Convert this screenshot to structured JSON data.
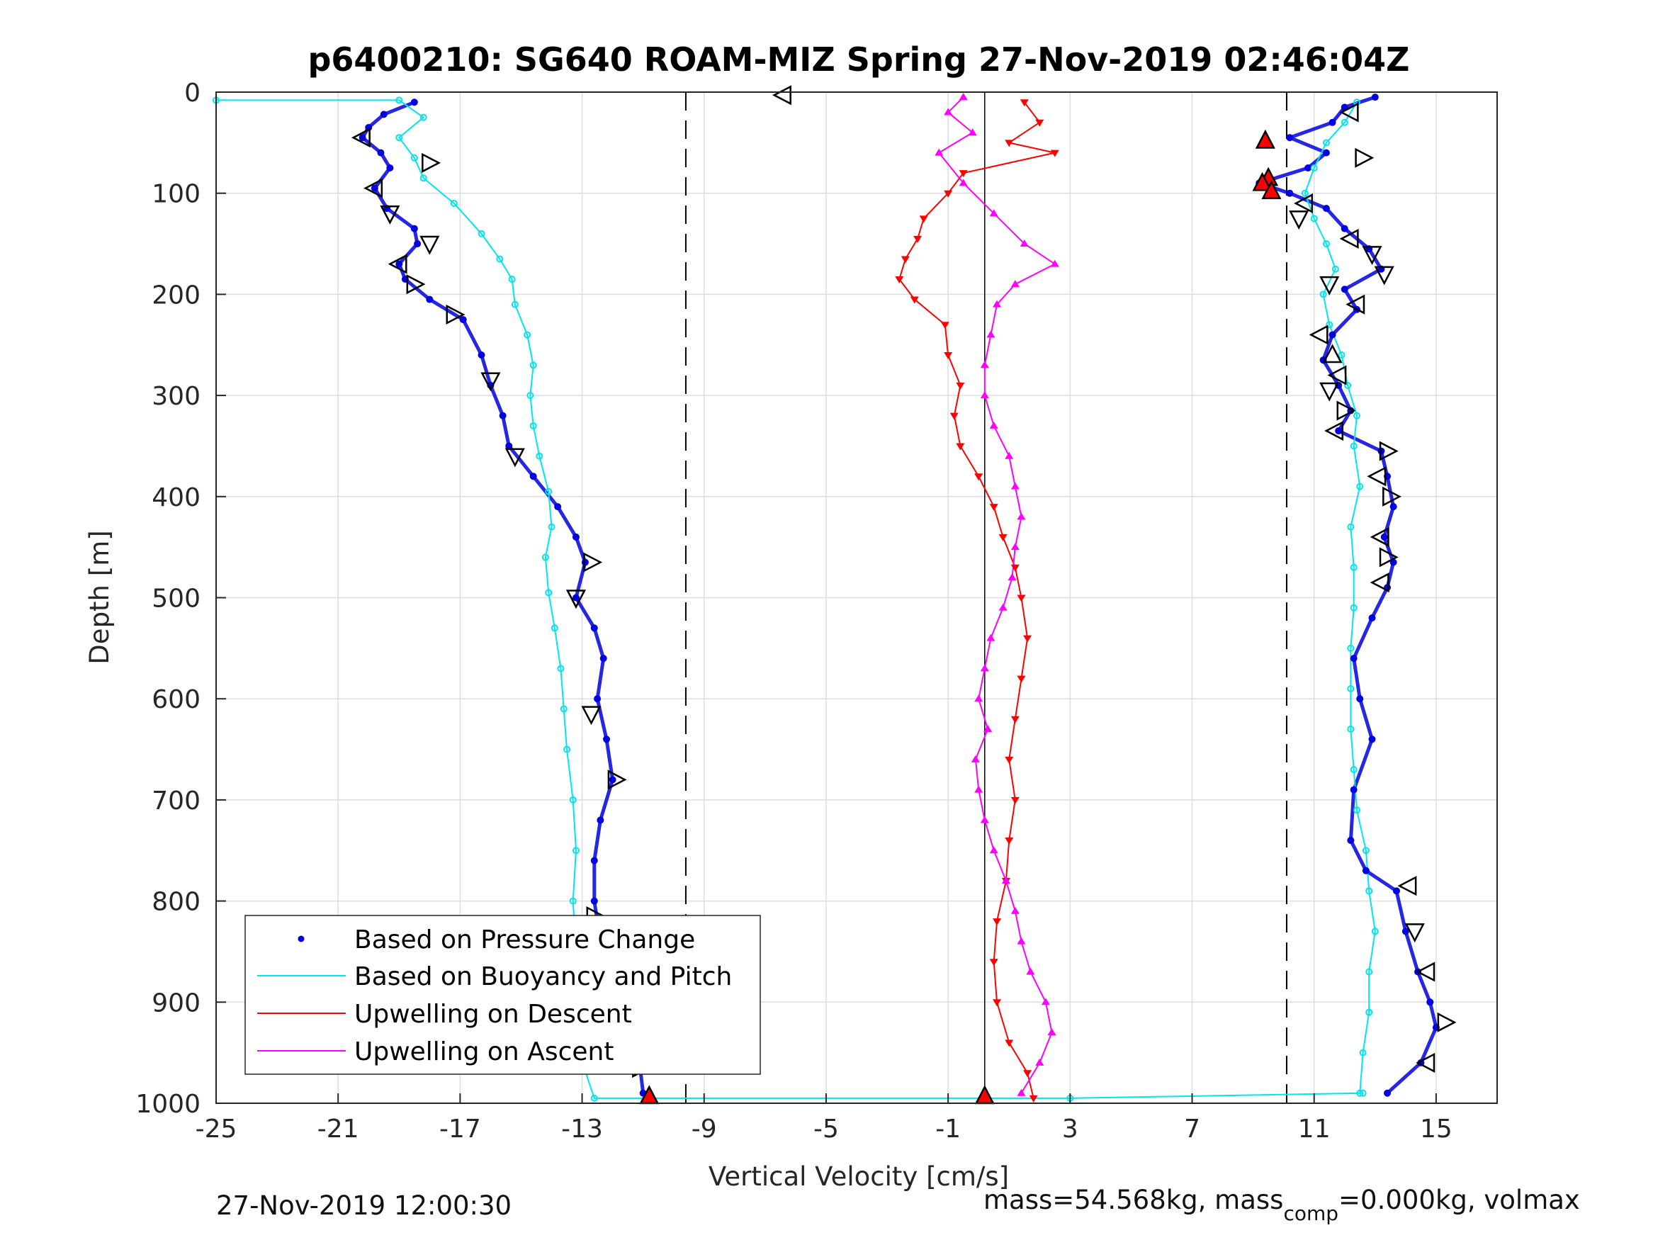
{
  "chart_data": {
    "type": "scatter",
    "title": "p6400210: SG640 ROAM-MIZ Spring 27-Nov-2019 02:46:04Z",
    "xlabel": "Vertical Velocity [cm/s]",
    "ylabel": "Depth [m]",
    "xlim": [
      -25,
      17
    ],
    "ylim": [
      1000,
      0
    ],
    "y_reversed": true,
    "grid": true,
    "xticks": [
      -25,
      -21,
      -17,
      -13,
      -9,
      -5,
      -1,
      3,
      7,
      11,
      15
    ],
    "yticks": [
      0,
      100,
      200,
      300,
      400,
      500,
      600,
      700,
      800,
      900,
      1000
    ],
    "legend": {
      "placement": "lower-left",
      "entries": [
        {
          "label": "Based on Pressure Change",
          "color": "#0000e0",
          "marker": "dot"
        },
        {
          "label": "Based on Buoyancy and Pitch",
          "color": "#00e5ee",
          "marker": "line"
        },
        {
          "label": "Upwelling on Descent",
          "color": "#ff0000",
          "marker": "line"
        },
        {
          "label": "Upwelling on Ascent",
          "color": "#ff00ff",
          "marker": "line"
        }
      ]
    },
    "reference_lines": {
      "dashed_x": [
        -9.6,
        10.1
      ],
      "solid_x": [
        0.2
      ]
    },
    "series": [
      {
        "name": "Based on Pressure Change",
        "phase": "descent",
        "color": "#0000e0",
        "points": [
          [
            -18.5,
            10
          ],
          [
            -19.5,
            22
          ],
          [
            -20.0,
            35
          ],
          [
            -20.2,
            45
          ],
          [
            -19.6,
            60
          ],
          [
            -19.3,
            75
          ],
          [
            -19.8,
            95
          ],
          [
            -19.4,
            115
          ],
          [
            -18.5,
            135
          ],
          [
            -18.4,
            150
          ],
          [
            -19.0,
            170
          ],
          [
            -18.8,
            185
          ],
          [
            -18.0,
            205
          ],
          [
            -16.9,
            225
          ],
          [
            -16.3,
            260
          ],
          [
            -16.0,
            290
          ],
          [
            -15.6,
            320
          ],
          [
            -15.4,
            350
          ],
          [
            -14.6,
            380
          ],
          [
            -13.8,
            410
          ],
          [
            -13.2,
            440
          ],
          [
            -12.9,
            465
          ],
          [
            -13.2,
            500
          ],
          [
            -12.6,
            530
          ],
          [
            -12.3,
            560
          ],
          [
            -12.5,
            600
          ],
          [
            -12.2,
            640
          ],
          [
            -12.0,
            680
          ],
          [
            -12.4,
            720
          ],
          [
            -12.6,
            760
          ],
          [
            -12.6,
            800
          ],
          [
            -12.4,
            840
          ],
          [
            -12.4,
            870
          ],
          [
            -12.0,
            900
          ],
          [
            -11.5,
            940
          ],
          [
            -11.1,
            965
          ],
          [
            -11.0,
            990
          ]
        ]
      },
      {
        "name": "Based on Pressure Change",
        "phase": "ascent",
        "color": "#0000e0",
        "points": [
          [
            13.0,
            5
          ],
          [
            12.0,
            15
          ],
          [
            11.6,
            30
          ],
          [
            10.2,
            45
          ],
          [
            11.4,
            60
          ],
          [
            10.8,
            75
          ],
          [
            9.2,
            90
          ],
          [
            10.2,
            100
          ],
          [
            11.4,
            115
          ],
          [
            12.0,
            135
          ],
          [
            12.8,
            155
          ],
          [
            13.2,
            175
          ],
          [
            12.0,
            195
          ],
          [
            12.4,
            215
          ],
          [
            11.6,
            240
          ],
          [
            11.3,
            265
          ],
          [
            11.8,
            290
          ],
          [
            12.2,
            315
          ],
          [
            11.8,
            335
          ],
          [
            13.2,
            355
          ],
          [
            13.4,
            380
          ],
          [
            13.6,
            410
          ],
          [
            13.3,
            440
          ],
          [
            13.6,
            465
          ],
          [
            13.4,
            490
          ],
          [
            12.9,
            520
          ],
          [
            12.3,
            560
          ],
          [
            12.5,
            600
          ],
          [
            12.9,
            640
          ],
          [
            12.3,
            690
          ],
          [
            12.2,
            740
          ],
          [
            12.7,
            770
          ],
          [
            13.7,
            790
          ],
          [
            14.0,
            830
          ],
          [
            14.4,
            870
          ],
          [
            14.8,
            900
          ],
          [
            15.0,
            925
          ],
          [
            14.5,
            960
          ],
          [
            13.4,
            990
          ]
        ]
      },
      {
        "name": "Based on Buoyancy and Pitch",
        "phase": "descent",
        "color": "#00e5ee",
        "points": [
          [
            -25.0,
            8
          ],
          [
            -19.0,
            8
          ],
          [
            -18.2,
            25
          ],
          [
            -19.0,
            45
          ],
          [
            -18.5,
            65
          ],
          [
            -18.2,
            85
          ],
          [
            -17.2,
            110
          ],
          [
            -16.3,
            140
          ],
          [
            -15.7,
            165
          ],
          [
            -15.3,
            185
          ],
          [
            -15.2,
            210
          ],
          [
            -14.8,
            240
          ],
          [
            -14.6,
            270
          ],
          [
            -14.7,
            300
          ],
          [
            -14.6,
            330
          ],
          [
            -14.4,
            360
          ],
          [
            -14.1,
            395
          ],
          [
            -14.0,
            430
          ],
          [
            -14.2,
            460
          ],
          [
            -14.1,
            495
          ],
          [
            -13.9,
            530
          ],
          [
            -13.7,
            570
          ],
          [
            -13.6,
            610
          ],
          [
            -13.5,
            650
          ],
          [
            -13.3,
            700
          ],
          [
            -13.2,
            750
          ],
          [
            -13.3,
            800
          ],
          [
            -13.2,
            850
          ],
          [
            -13.1,
            900
          ],
          [
            -13.1,
            950
          ],
          [
            -12.6,
            995
          ],
          [
            3.0,
            995
          ],
          [
            12.6,
            990
          ]
        ]
      },
      {
        "name": "Based on Buoyancy and Pitch",
        "phase": "ascent",
        "color": "#00e5ee",
        "points": [
          [
            12.4,
            10
          ],
          [
            12.0,
            30
          ],
          [
            11.4,
            50
          ],
          [
            11.0,
            75
          ],
          [
            10.7,
            100
          ],
          [
            11.0,
            125
          ],
          [
            11.4,
            150
          ],
          [
            11.7,
            175
          ],
          [
            11.3,
            200
          ],
          [
            11.5,
            230
          ],
          [
            11.9,
            260
          ],
          [
            12.1,
            290
          ],
          [
            12.4,
            320
          ],
          [
            12.3,
            350
          ],
          [
            12.5,
            390
          ],
          [
            12.2,
            430
          ],
          [
            12.3,
            470
          ],
          [
            12.3,
            510
          ],
          [
            12.2,
            550
          ],
          [
            12.2,
            590
          ],
          [
            12.2,
            630
          ],
          [
            12.3,
            670
          ],
          [
            12.4,
            710
          ],
          [
            12.7,
            750
          ],
          [
            12.8,
            790
          ],
          [
            13.0,
            830
          ],
          [
            12.8,
            870
          ],
          [
            12.8,
            910
          ],
          [
            12.6,
            950
          ],
          [
            12.5,
            990
          ]
        ]
      },
      {
        "name": "Upwelling on Descent",
        "color": "#ff0000",
        "points": [
          [
            1.5,
            10
          ],
          [
            2.0,
            30
          ],
          [
            1.0,
            50
          ],
          [
            2.5,
            60
          ],
          [
            -0.5,
            80
          ],
          [
            -1.0,
            100
          ],
          [
            -1.8,
            125
          ],
          [
            -2.0,
            145
          ],
          [
            -2.4,
            165
          ],
          [
            -2.6,
            185
          ],
          [
            -2.1,
            205
          ],
          [
            -1.1,
            230
          ],
          [
            -1.0,
            260
          ],
          [
            -0.6,
            290
          ],
          [
            -0.8,
            320
          ],
          [
            -0.6,
            350
          ],
          [
            0.0,
            380
          ],
          [
            0.5,
            410
          ],
          [
            0.8,
            440
          ],
          [
            1.2,
            470
          ],
          [
            1.4,
            500
          ],
          [
            1.6,
            540
          ],
          [
            1.4,
            580
          ],
          [
            1.2,
            620
          ],
          [
            1.0,
            660
          ],
          [
            1.2,
            700
          ],
          [
            1.0,
            740
          ],
          [
            0.9,
            780
          ],
          [
            0.6,
            820
          ],
          [
            0.5,
            860
          ],
          [
            0.6,
            900
          ],
          [
            1.0,
            940
          ],
          [
            1.6,
            970
          ],
          [
            1.8,
            995
          ]
        ]
      },
      {
        "name": "Upwelling on Ascent",
        "color": "#ff00ff",
        "points": [
          [
            -0.5,
            5
          ],
          [
            -1.0,
            20
          ],
          [
            -0.2,
            40
          ],
          [
            -1.3,
            60
          ],
          [
            -0.5,
            90
          ],
          [
            0.5,
            120
          ],
          [
            1.5,
            150
          ],
          [
            2.5,
            170
          ],
          [
            1.2,
            190
          ],
          [
            0.6,
            210
          ],
          [
            0.4,
            240
          ],
          [
            0.2,
            270
          ],
          [
            0.2,
            300
          ],
          [
            0.5,
            330
          ],
          [
            1.0,
            360
          ],
          [
            1.2,
            390
          ],
          [
            1.4,
            420
          ],
          [
            1.2,
            450
          ],
          [
            1.1,
            480
          ],
          [
            0.8,
            510
          ],
          [
            0.4,
            540
          ],
          [
            0.2,
            570
          ],
          [
            0.0,
            600
          ],
          [
            0.3,
            630
          ],
          [
            -0.1,
            660
          ],
          [
            0.0,
            690
          ],
          [
            0.2,
            720
          ],
          [
            0.5,
            750
          ],
          [
            0.9,
            780
          ],
          [
            1.2,
            810
          ],
          [
            1.4,
            840
          ],
          [
            1.7,
            870
          ],
          [
            2.2,
            900
          ],
          [
            2.4,
            930
          ],
          [
            2.0,
            960
          ],
          [
            1.4,
            990
          ]
        ]
      }
    ],
    "markers": {
      "open_triangles": [
        {
          "x": -6.4,
          "y": 3,
          "dir": "left"
        },
        {
          "x": -20.2,
          "y": 45,
          "dir": "left"
        },
        {
          "x": -18.0,
          "y": 70,
          "dir": "right"
        },
        {
          "x": -19.8,
          "y": 95,
          "dir": "left"
        },
        {
          "x": -19.3,
          "y": 120,
          "dir": "down"
        },
        {
          "x": -18.0,
          "y": 150,
          "dir": "down"
        },
        {
          "x": -19.0,
          "y": 170,
          "dir": "left"
        },
        {
          "x": -18.5,
          "y": 190,
          "dir": "right"
        },
        {
          "x": -17.2,
          "y": 220,
          "dir": "right"
        },
        {
          "x": -16.0,
          "y": 285,
          "dir": "down"
        },
        {
          "x": -15.2,
          "y": 360,
          "dir": "down"
        },
        {
          "x": -12.7,
          "y": 465,
          "dir": "right"
        },
        {
          "x": -13.2,
          "y": 500,
          "dir": "down"
        },
        {
          "x": -12.7,
          "y": 615,
          "dir": "down"
        },
        {
          "x": -11.9,
          "y": 680,
          "dir": "right"
        },
        {
          "x": -12.6,
          "y": 815,
          "dir": "right"
        },
        {
          "x": -11.1,
          "y": 965,
          "dir": "right"
        },
        {
          "x": 12.2,
          "y": 20,
          "dir": "left"
        },
        {
          "x": 12.6,
          "y": 65,
          "dir": "right"
        },
        {
          "x": 10.7,
          "y": 110,
          "dir": "left"
        },
        {
          "x": 10.5,
          "y": 125,
          "dir": "down"
        },
        {
          "x": 12.2,
          "y": 145,
          "dir": "left"
        },
        {
          "x": 12.9,
          "y": 160,
          "dir": "down"
        },
        {
          "x": 13.3,
          "y": 180,
          "dir": "down"
        },
        {
          "x": 11.5,
          "y": 190,
          "dir": "down"
        },
        {
          "x": 12.4,
          "y": 210,
          "dir": "left"
        },
        {
          "x": 11.2,
          "y": 240,
          "dir": "left"
        },
        {
          "x": 11.6,
          "y": 260,
          "dir": "up"
        },
        {
          "x": 11.8,
          "y": 280,
          "dir": "left"
        },
        {
          "x": 11.5,
          "y": 295,
          "dir": "down"
        },
        {
          "x": 12.0,
          "y": 315,
          "dir": "right"
        },
        {
          "x": 11.7,
          "y": 335,
          "dir": "left"
        },
        {
          "x": 13.4,
          "y": 355,
          "dir": "right"
        },
        {
          "x": 13.1,
          "y": 380,
          "dir": "left"
        },
        {
          "x": 13.5,
          "y": 400,
          "dir": "right"
        },
        {
          "x": 13.2,
          "y": 440,
          "dir": "left"
        },
        {
          "x": 13.4,
          "y": 460,
          "dir": "right"
        },
        {
          "x": 13.2,
          "y": 485,
          "dir": "left"
        },
        {
          "x": 14.1,
          "y": 785,
          "dir": "left"
        },
        {
          "x": 14.3,
          "y": 830,
          "dir": "down"
        },
        {
          "x": 14.7,
          "y": 870,
          "dir": "left"
        },
        {
          "x": 15.3,
          "y": 920,
          "dir": "right"
        },
        {
          "x": 14.7,
          "y": 960,
          "dir": "left"
        }
      ],
      "red_triangles": [
        {
          "x": -10.8,
          "y": 998
        },
        {
          "x": 0.2,
          "y": 1000
        },
        {
          "x": 9.4,
          "y": 48
        },
        {
          "x": 9.5,
          "y": 85
        },
        {
          "x": 9.3,
          "y": 90
        },
        {
          "x": 9.6,
          "y": 98
        }
      ]
    }
  },
  "footer": {
    "timestamp": "27-Nov-2019 12:00:30",
    "mass_text_a": "mass=54.568kg, mass",
    "mass_sub": "comp",
    "mass_text_b": "=0.000kg, volmax"
  }
}
